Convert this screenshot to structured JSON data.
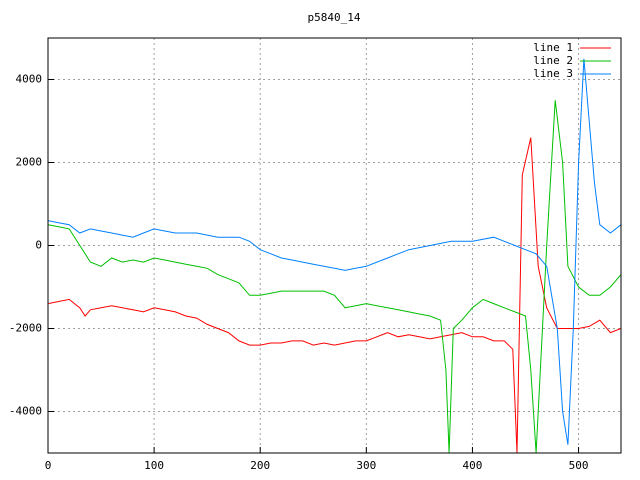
{
  "chart_data": {
    "type": "line",
    "title": "p5840_14",
    "xlim": [
      0,
      540
    ],
    "ylim": [
      -5000,
      5000
    ],
    "xticks": [
      0,
      100,
      200,
      300,
      400,
      500
    ],
    "yticks": [
      -4000,
      -2000,
      0,
      2000,
      4000
    ],
    "grid": true,
    "legend": "top-right",
    "series": [
      {
        "name": "line 1",
        "color": "#ff0000",
        "x": [
          0,
          10,
          20,
          30,
          35,
          40,
          50,
          60,
          70,
          80,
          90,
          100,
          110,
          120,
          130,
          140,
          150,
          160,
          170,
          180,
          190,
          200,
          210,
          220,
          230,
          240,
          250,
          260,
          270,
          280,
          290,
          300,
          310,
          320,
          330,
          340,
          350,
          360,
          370,
          380,
          390,
          400,
          410,
          420,
          430,
          438,
          442,
          447,
          455,
          462,
          470,
          480,
          490,
          500,
          510,
          520,
          530,
          540
        ],
        "values": [
          -1400,
          -1350,
          -1300,
          -1500,
          -1700,
          -1550,
          -1500,
          -1450,
          -1500,
          -1550,
          -1600,
          -1500,
          -1550,
          -1600,
          -1700,
          -1750,
          -1900,
          -2000,
          -2100,
          -2300,
          -2400,
          -2400,
          -2350,
          -2350,
          -2300,
          -2300,
          -2400,
          -2350,
          -2400,
          -2350,
          -2300,
          -2300,
          -2200,
          -2100,
          -2200,
          -2150,
          -2200,
          -2250,
          -2200,
          -2150,
          -2100,
          -2200,
          -2200,
          -2300,
          -2300,
          -2500,
          -5000,
          1700,
          2600,
          -500,
          -1500,
          -2000,
          -2000,
          -2000,
          -1950,
          -1800,
          -2100,
          -2000
        ]
      },
      {
        "name": "line 2",
        "color": "#00c000",
        "x": [
          0,
          10,
          20,
          30,
          40,
          50,
          60,
          70,
          80,
          90,
          100,
          110,
          120,
          130,
          140,
          150,
          160,
          170,
          180,
          190,
          200,
          210,
          220,
          230,
          240,
          250,
          260,
          270,
          280,
          290,
          300,
          310,
          320,
          330,
          340,
          350,
          360,
          370,
          375,
          378,
          382,
          390,
          400,
          410,
          420,
          430,
          440,
          450,
          455,
          460,
          470,
          478,
          485,
          490,
          500,
          510,
          520,
          530,
          540
        ],
        "values": [
          500,
          450,
          400,
          0,
          -400,
          -500,
          -300,
          -400,
          -350,
          -400,
          -300,
          -350,
          -400,
          -450,
          -500,
          -550,
          -700,
          -800,
          -900,
          -1200,
          -1200,
          -1150,
          -1100,
          -1100,
          -1100,
          -1100,
          -1100,
          -1200,
          -1500,
          -1450,
          -1400,
          -1450,
          -1500,
          -1550,
          -1600,
          -1650,
          -1700,
          -1800,
          -3000,
          -5000,
          -2000,
          -1800,
          -1500,
          -1300,
          -1400,
          -1500,
          -1600,
          -1700,
          -3000,
          -5000,
          0,
          3500,
          2000,
          -500,
          -1000,
          -1200,
          -1200,
          -1000,
          -700
        ]
      },
      {
        "name": "line 3",
        "color": "#0080ff",
        "x": [
          0,
          10,
          20,
          30,
          40,
          50,
          60,
          70,
          80,
          90,
          100,
          110,
          120,
          130,
          140,
          150,
          160,
          170,
          180,
          190,
          200,
          210,
          220,
          230,
          240,
          250,
          260,
          270,
          280,
          290,
          300,
          310,
          320,
          330,
          340,
          350,
          360,
          370,
          380,
          390,
          400,
          410,
          420,
          430,
          440,
          450,
          460,
          470,
          480,
          485,
          490,
          495,
          500,
          505,
          510,
          515,
          520,
          530,
          540
        ],
        "values": [
          600,
          550,
          500,
          300,
          400,
          350,
          300,
          250,
          200,
          300,
          400,
          350,
          300,
          300,
          300,
          250,
          200,
          200,
          200,
          100,
          -100,
          -200,
          -300,
          -350,
          -400,
          -450,
          -500,
          -550,
          -600,
          -550,
          -500,
          -400,
          -300,
          -200,
          -100,
          -50,
          0,
          50,
          100,
          100,
          100,
          150,
          200,
          100,
          0,
          -100,
          -200,
          -500,
          -2000,
          -4000,
          -4800,
          -2000,
          2000,
          4500,
          3000,
          1500,
          500,
          300,
          500
        ]
      }
    ]
  }
}
